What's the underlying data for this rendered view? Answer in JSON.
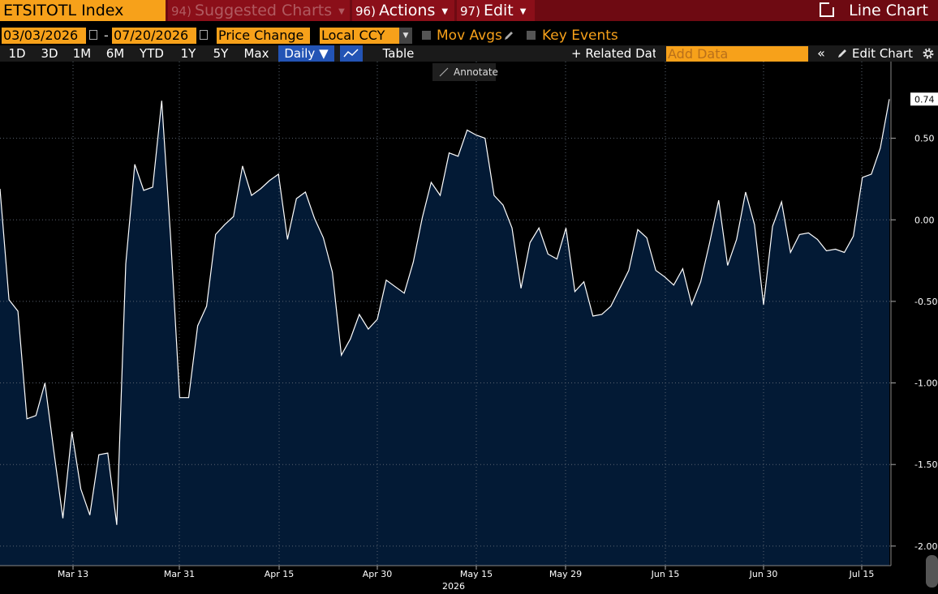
{
  "header": {
    "ticker": "ETSITOTL Index",
    "menus": [
      {
        "num": "94)",
        "label": "Suggested Charts"
      },
      {
        "num": "96)",
        "label": "Actions"
      },
      {
        "num": "97)",
        "label": "Edit"
      }
    ],
    "chart_type_label": "Line Chart"
  },
  "options": {
    "start_date": "03/03/2026",
    "end_date": "07/20/2026",
    "dash": "-",
    "mode": "Price Change",
    "currency": "Local CCY",
    "mov_avgs": "Mov Avgs",
    "key_events": "Key Events"
  },
  "toolbar": {
    "periods": [
      "1D",
      "3D",
      "1M",
      "6M",
      "YTD",
      "1Y",
      "5Y",
      "Max"
    ],
    "frequency": "Daily ▼",
    "table": "Table",
    "related_data": "+ Related Data",
    "add_data_placeholder": "Add Data",
    "edit_chart": "Edit Chart",
    "annotate": "Annotate"
  },
  "colors": {
    "accent": "#f7a11a",
    "title_bar": "#6e0a12",
    "area_fill": "#031a35",
    "line": "#ffffff"
  },
  "chart_data": {
    "type": "area",
    "year_label": "2026",
    "x_ticks": [
      "Mar 13",
      "Mar 31",
      "Apr 15",
      "Apr 30",
      "May 15",
      "May 29",
      "Jun 15",
      "Jun 30",
      "Jul 15"
    ],
    "y_ticks": [
      0.5,
      0.0,
      -0.5,
      -1.0,
      -1.5,
      -2.0
    ],
    "y_tick_labels": [
      "0.50",
      "0.00",
      "-0.50",
      "-1.00",
      "-1.50",
      "-2.00"
    ],
    "ylim": [
      -2.12,
      0.97
    ],
    "last_value_label": "0.74",
    "grid": true,
    "values": [
      0.19,
      -0.49,
      -0.56,
      -1.22,
      -1.2,
      -1.0,
      -1.42,
      -1.83,
      -1.3,
      -1.65,
      -1.81,
      -1.44,
      -1.43,
      -1.87,
      -0.27,
      0.34,
      0.18,
      0.2,
      0.73,
      -0.11,
      -1.09,
      -1.09,
      -0.65,
      -0.53,
      -0.09,
      -0.03,
      0.02,
      0.33,
      0.15,
      0.19,
      0.24,
      0.28,
      -0.12,
      0.13,
      0.17,
      0.01,
      -0.11,
      -0.32,
      -0.83,
      -0.73,
      -0.58,
      -0.67,
      -0.61,
      -0.37,
      -0.41,
      -0.45,
      -0.26,
      0.01,
      0.23,
      0.15,
      0.41,
      0.39,
      0.55,
      0.52,
      0.5,
      0.15,
      0.09,
      -0.05,
      -0.42,
      -0.14,
      -0.05,
      -0.21,
      -0.24,
      -0.05,
      -0.44,
      -0.38,
      -0.59,
      -0.58,
      -0.53,
      -0.42,
      -0.31,
      -0.06,
      -0.11,
      -0.31,
      -0.35,
      -0.4,
      -0.3,
      -0.52,
      -0.38,
      -0.14,
      0.12,
      -0.28,
      -0.12,
      0.17,
      -0.03,
      -0.52,
      -0.04,
      0.11,
      -0.2,
      -0.09,
      -0.08,
      -0.12,
      -0.19,
      -0.18,
      -0.2,
      -0.1,
      0.26,
      0.28,
      0.44,
      0.74
    ]
  }
}
